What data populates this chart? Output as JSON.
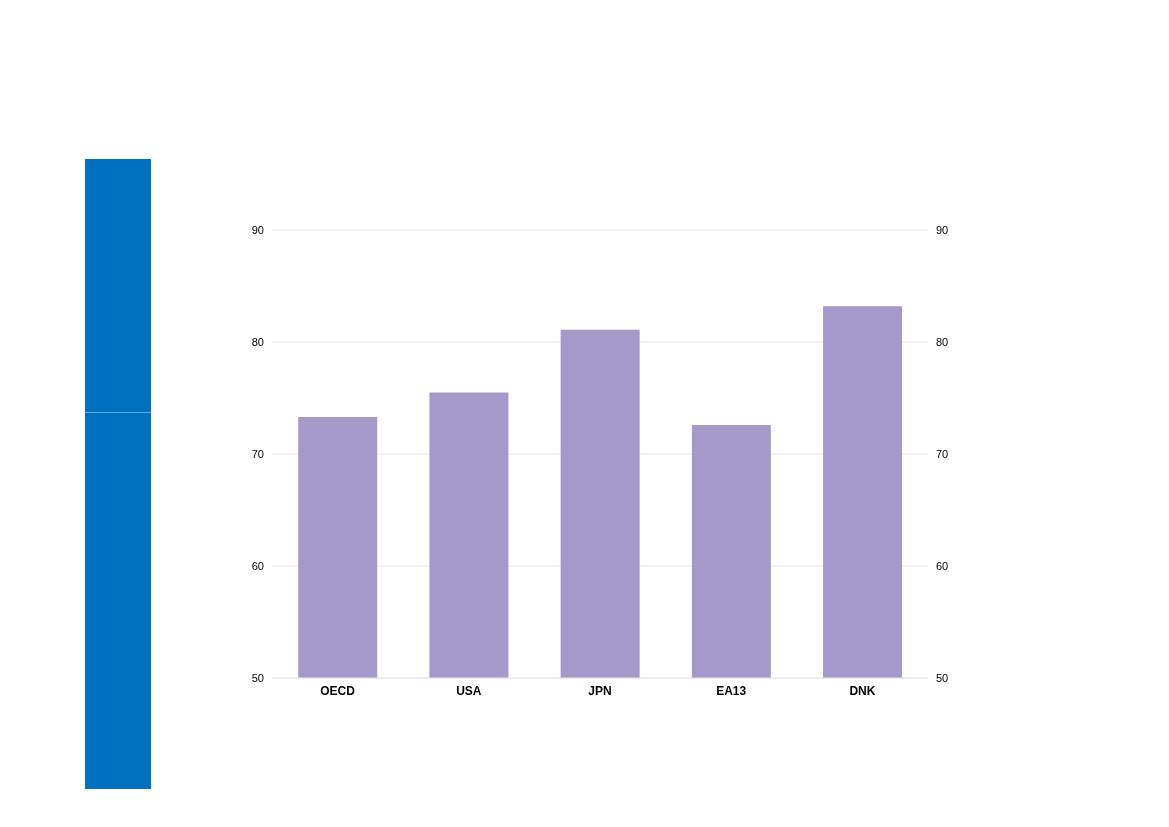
{
  "chart_data": {
    "type": "bar",
    "categories": [
      "OECD",
      "USA",
      "JPN",
      "EA13",
      "DNK"
    ],
    "values": [
      73.3,
      75.5,
      81.1,
      72.6,
      83.2
    ],
    "color": "#a599c9",
    "ylim": [
      50,
      90
    ],
    "yticks": [
      50,
      60,
      70,
      80,
      90
    ],
    "y2lim": [
      50,
      90
    ],
    "y2ticks": [
      50,
      60,
      70,
      80,
      90
    ],
    "grid": "y"
  }
}
